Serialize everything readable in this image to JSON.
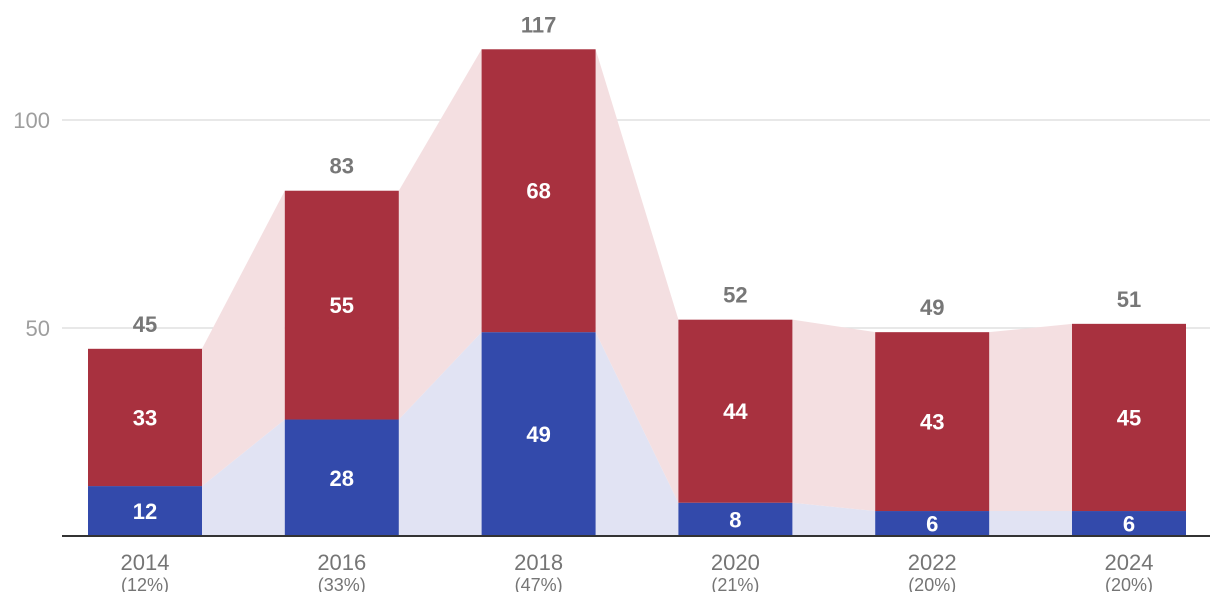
{
  "chart_data": {
    "type": "bar",
    "stacked": true,
    "categories": [
      "2014",
      "2016",
      "2018",
      "2020",
      "2022",
      "2024"
    ],
    "category_sublabels": [
      "(12%)",
      "(33%)",
      "(47%)",
      "(21%)",
      "(20%)",
      "(20%)"
    ],
    "series": [
      {
        "values": [
          12,
          28,
          49,
          8,
          6,
          6
        ],
        "color": "#334aab",
        "band_color": "#e1e3f3"
      },
      {
        "values": [
          33,
          55,
          68,
          44,
          43,
          45
        ],
        "color": "#a8313f",
        "band_color": "#f4dfe1"
      }
    ],
    "totals": [
      45,
      83,
      117,
      52,
      49,
      51
    ],
    "y_ticks": [
      50,
      100
    ],
    "ylim": [
      0,
      117
    ],
    "grid": true,
    "colors": {
      "grid": "#e0e0e0",
      "axis": "#333333"
    }
  }
}
